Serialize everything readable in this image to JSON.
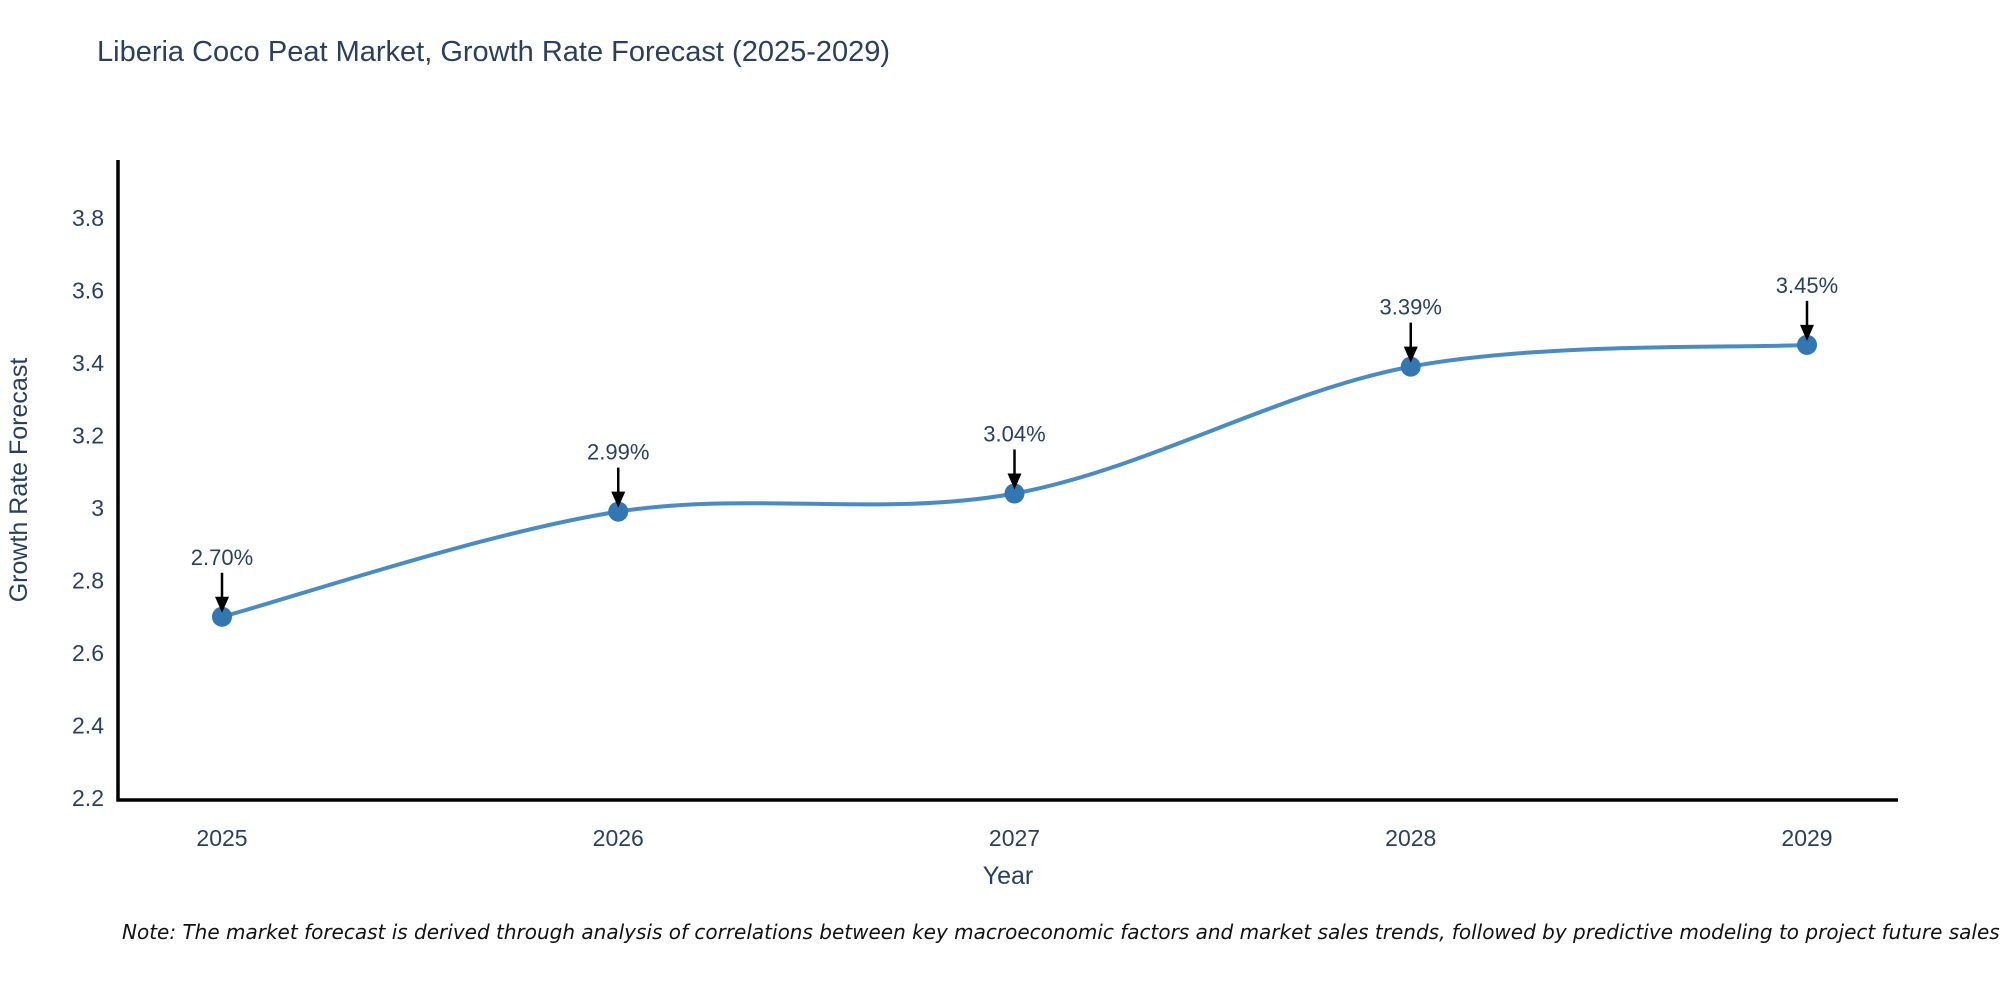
{
  "title": "Liberia Coco Peat Market, Growth Rate Forecast (2025-2029)",
  "note": "Note: The market forecast is derived through analysis of correlations between key macroeconomic factors and market sales trends, followed by predictive modeling to project future sales",
  "colors": {
    "title_text": "#2a3f5f",
    "tick_text": "#2a3f5f",
    "axis_line": "#000000",
    "line": "#4a8cc2",
    "marker": "#3276b2",
    "annotation_arrow": "#000000",
    "annotation_text": "#2a3f5f",
    "background": "#ffffff"
  },
  "chart_data": {
    "type": "line",
    "title": "Liberia Coco Peat Market, Growth Rate Forecast (2025-2029)",
    "xlabel": "Year",
    "ylabel": "Growth Rate Forecast",
    "x": [
      2025,
      2026,
      2027,
      2028,
      2029
    ],
    "values": [
      2.7,
      2.99,
      3.04,
      3.39,
      3.45
    ],
    "point_labels": [
      "2.70%",
      "2.99%",
      "3.04%",
      "3.39%",
      "3.45%"
    ],
    "xticks": [
      "2025",
      "2026",
      "2027",
      "2028",
      "2029"
    ],
    "yticks": [
      2.2,
      2.4,
      2.6,
      2.8,
      3,
      3.2,
      3.4,
      3.6,
      3.8
    ],
    "ylim": [
      2.2,
      3.96
    ],
    "line_shape": "spline",
    "grid": false,
    "legend": "none",
    "annotations": "value labels with down arrows above each point"
  }
}
